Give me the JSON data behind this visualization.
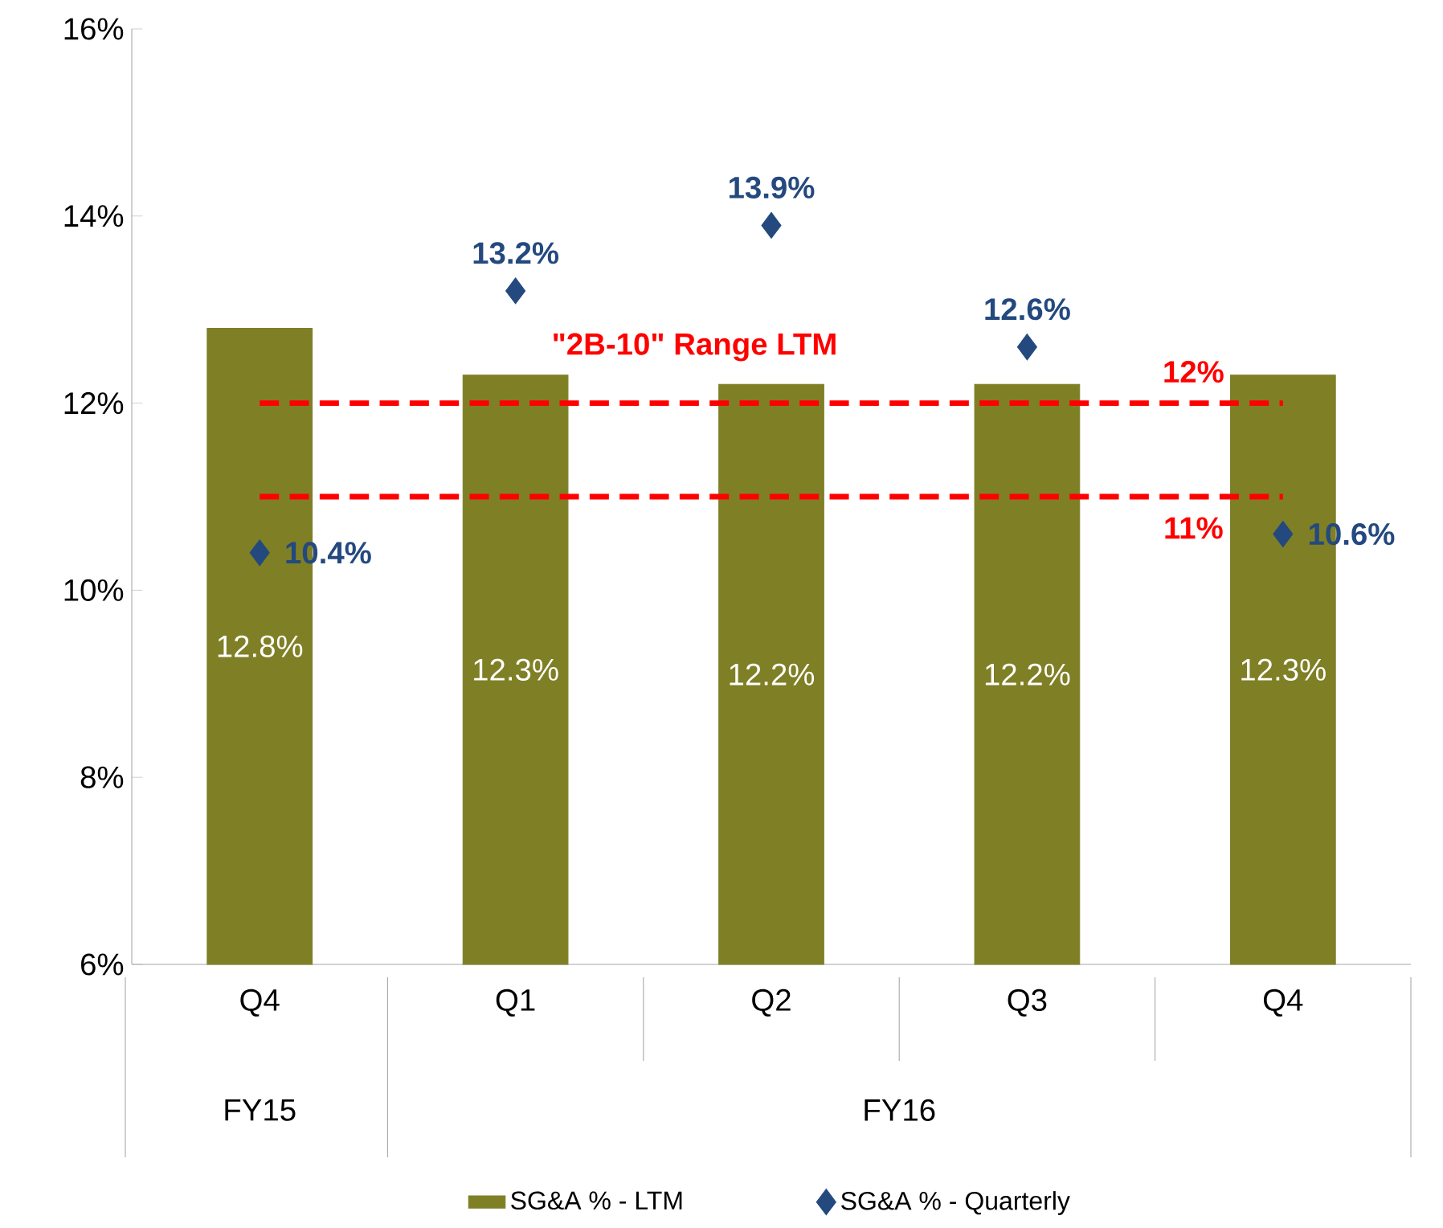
{
  "chart_data": {
    "type": "bar",
    "categories": [
      "Q4",
      "Q1",
      "Q2",
      "Q3",
      "Q4"
    ],
    "series": [
      {
        "name": "SG&A % - LTM",
        "color": "#7f7f26",
        "values": [
          12.8,
          12.3,
          12.2,
          12.2,
          12.3
        ],
        "value_labels": [
          "12.8%",
          "12.3%",
          "12.2%",
          "12.2%",
          "12.3%"
        ]
      },
      {
        "name": "SG&A % - Quarterly",
        "type": "scatter",
        "color": "#24497f",
        "values": [
          10.4,
          13.2,
          13.9,
          12.6,
          10.6
        ],
        "value_labels": [
          "10.4%",
          "13.2%",
          "13.9%",
          "12.6%",
          "10.6%"
        ]
      }
    ],
    "ylim": [
      6,
      16
    ],
    "yticks": [
      {
        "value": 6,
        "label": "6%"
      },
      {
        "value": 8,
        "label": "8%"
      },
      {
        "value": 10,
        "label": "10%"
      },
      {
        "value": 12,
        "label": "12%"
      },
      {
        "value": 14,
        "label": "14%"
      },
      {
        "value": 16,
        "label": "16%"
      }
    ],
    "ref_lines": [
      {
        "axis": "y",
        "value": 12,
        "label": "12%",
        "color": "#ff0000",
        "line_style": "dashed"
      },
      {
        "axis": "y",
        "value": 11,
        "label": "11%",
        "color": "#ff0000",
        "line_style": "dashed"
      }
    ],
    "annotations": [
      "FY15",
      "FY16",
      "\"2B-10\" Range LTM"
    ],
    "marker": "diamond",
    "legend": "bottom",
    "grid": false
  }
}
